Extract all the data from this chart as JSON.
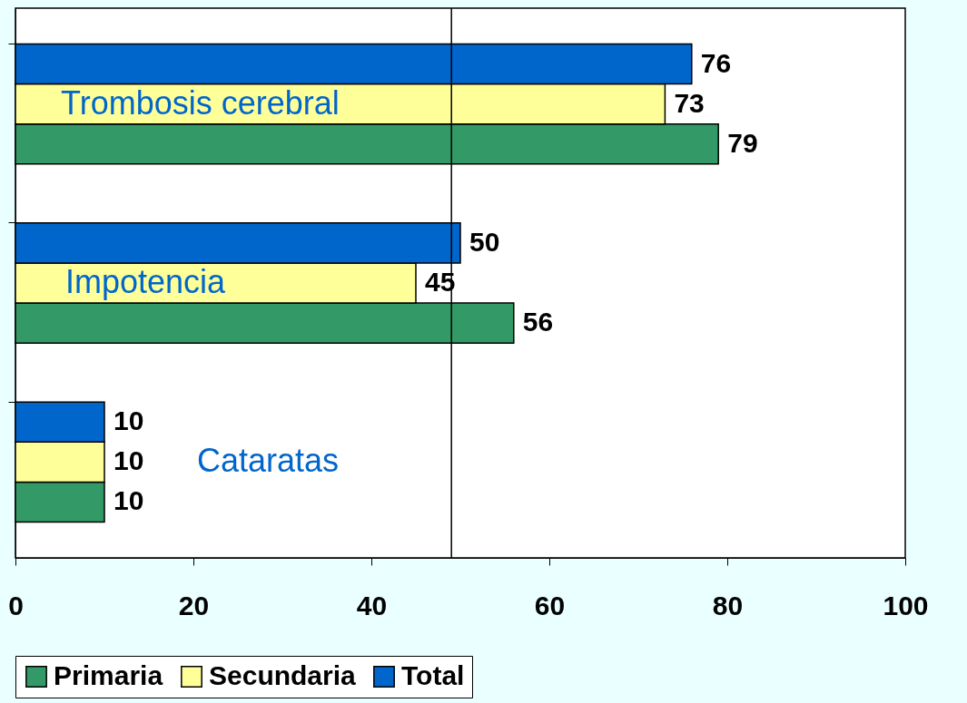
{
  "chart_data": {
    "type": "bar",
    "orientation": "horizontal",
    "categories": [
      "Trombosis cerebral",
      "Impotencia",
      "Cataratas"
    ],
    "series": [
      {
        "name": "Primaria",
        "color": "#339966",
        "values": [
          79,
          56,
          10
        ]
      },
      {
        "name": "Secundaria",
        "color": "#ffff99",
        "values": [
          73,
          45,
          10
        ]
      },
      {
        "name": "Total",
        "color": "#0066cc",
        "values": [
          76,
          50,
          10
        ]
      }
    ],
    "xlim": [
      0,
      100
    ],
    "xticks": [
      0,
      20,
      40,
      60,
      80,
      100
    ],
    "ref_lines": [
      {
        "axis": "x",
        "value": 49,
        "color": "#000000"
      }
    ],
    "data_labels": true,
    "legend": "bottom",
    "grid": false,
    "tick_labels": "x"
  }
}
